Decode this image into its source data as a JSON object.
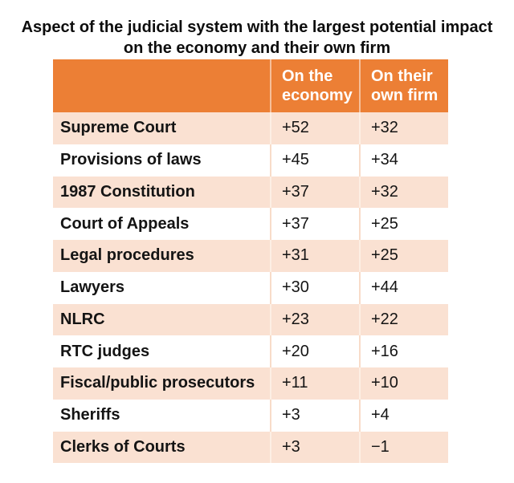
{
  "title": {
    "line1": "Aspect of the judicial system with the largest potential impact",
    "line2": "on the economy and their own firm"
  },
  "table": {
    "columns": [
      {
        "label": ""
      },
      {
        "label": "On the economy"
      },
      {
        "label": "On their own firm"
      }
    ],
    "rows": [
      {
        "label": "Supreme Court",
        "economy": "+52",
        "own_firm": "+32"
      },
      {
        "label": "Provisions of laws",
        "economy": "+45",
        "own_firm": "+34"
      },
      {
        "label": "1987 Constitution",
        "economy": "+37",
        "own_firm": "+32"
      },
      {
        "label": "Court of Appeals",
        "economy": "+37",
        "own_firm": "+25"
      },
      {
        "label": "Legal procedures",
        "economy": "+31",
        "own_firm": "+25"
      },
      {
        "label": "Lawyers",
        "economy": "+30",
        "own_firm": "+44"
      },
      {
        "label": "NLRC",
        "economy": "+23",
        "own_firm": "+22"
      },
      {
        "label": "RTC judges",
        "economy": "+20",
        "own_firm": "+16"
      },
      {
        "label": "Fiscal/public prosecutors",
        "economy": "+11",
        "own_firm": "+10"
      },
      {
        "label": "Sheriffs",
        "economy": "+3",
        "own_firm": "+4"
      },
      {
        "label": "Clerks of Courts",
        "economy": "+3",
        "own_firm": "−1"
      }
    ]
  },
  "colors": {
    "header_bg": "#EC7F35",
    "band_row_bg": "#FAE1D2",
    "plain_row_bg": "#FFFFFF",
    "header_text": "#FFFFFF",
    "body_text": "#141414"
  },
  "chart_data": {
    "type": "table",
    "title": "Aspect of the judicial system with the largest potential impact on the economy and their own firm",
    "categories": [
      "Supreme Court",
      "Provisions of laws",
      "1987 Constitution",
      "Court of Appeals",
      "Legal procedures",
      "Lawyers",
      "NLRC",
      "RTC judges",
      "Fiscal/public prosecutors",
      "Sheriffs",
      "Clerks of Courts"
    ],
    "series": [
      {
        "name": "On the economy",
        "values": [
          52,
          45,
          37,
          37,
          31,
          30,
          23,
          20,
          11,
          3,
          3
        ]
      },
      {
        "name": "On their own firm",
        "values": [
          32,
          34,
          32,
          25,
          25,
          44,
          22,
          16,
          10,
          4,
          -1
        ]
      }
    ],
    "legend_position": "header-row",
    "grid": false
  }
}
